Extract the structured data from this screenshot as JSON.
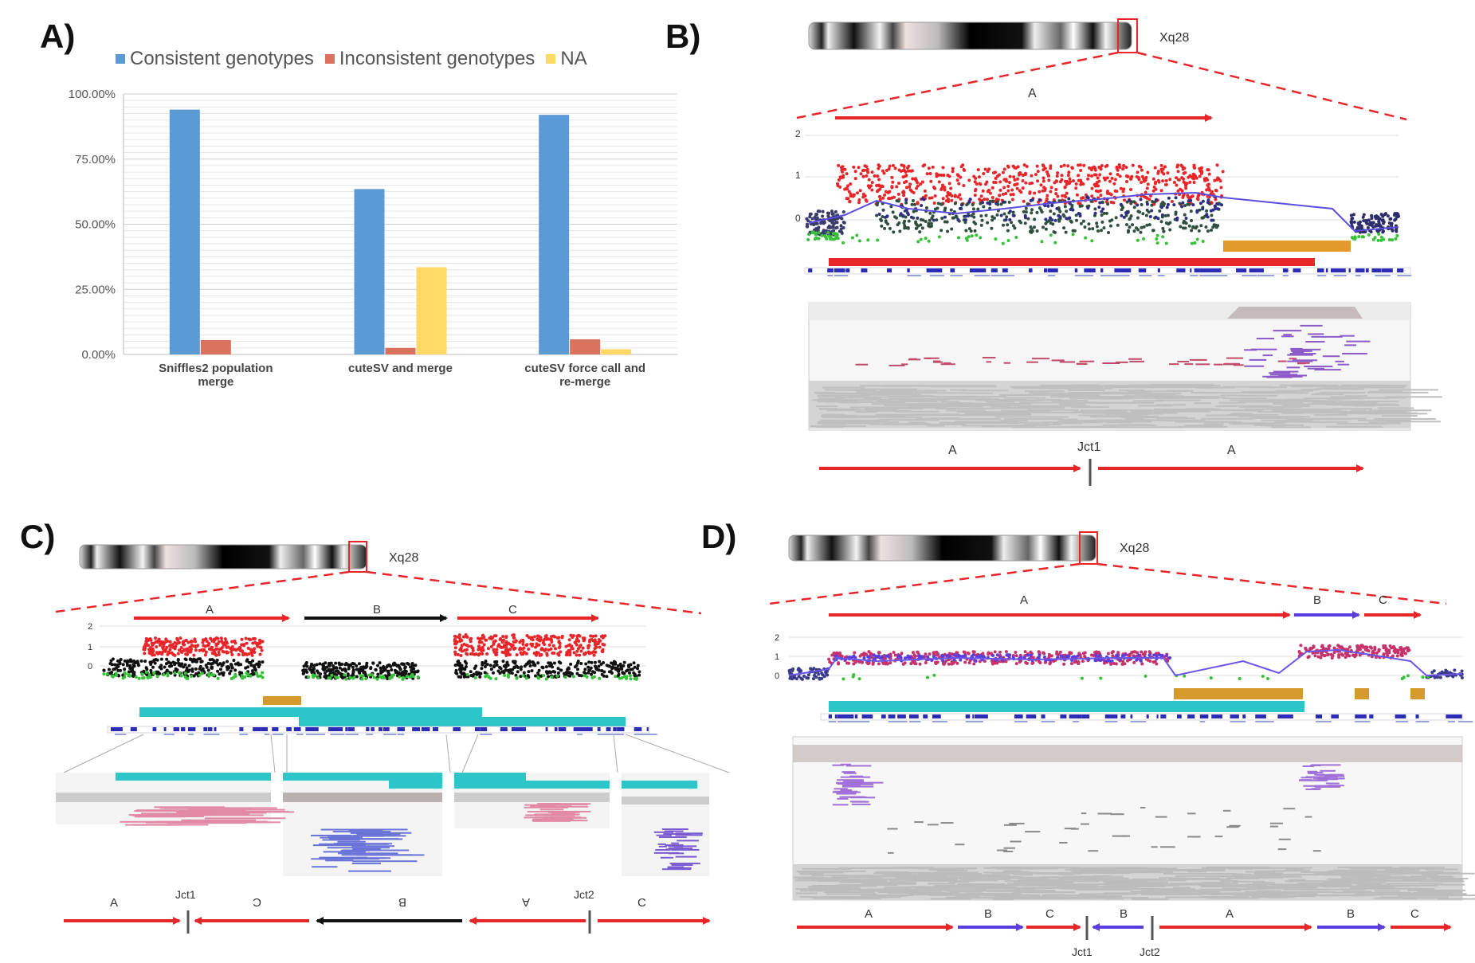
{
  "panels": {
    "a": "A)",
    "b": "B)",
    "c": "C)",
    "d": "D)"
  },
  "chart_data": {
    "type": "bar",
    "categories": [
      [
        "Sniffles2 population",
        "merge"
      ],
      [
        "cuteSV and merge"
      ],
      [
        "cuteSV force call and",
        "re-merge"
      ]
    ],
    "series": [
      {
        "name": "Consistent genotypes",
        "color": "#5b9bd5",
        "values": [
          0.94,
          0.635,
          0.92
        ]
      },
      {
        "name": "Inconsistent genotypes",
        "color": "#d9735e",
        "values": [
          0.055,
          0.025,
          0.058
        ]
      },
      {
        "name": "NA",
        "color": "#ffd966",
        "values": [
          0.0,
          0.335,
          0.02
        ]
      }
    ],
    "yticks": [
      "0.00%",
      "25.00%",
      "50.00%",
      "75.00%",
      "100.00%"
    ],
    "ylim": [
      0,
      1
    ],
    "legend": "top"
  },
  "panelB": {
    "band": "Xq28",
    "top_segment": "A",
    "bottom_left": "A",
    "bottom_right": "A",
    "junction": "Jct1",
    "yticks": [
      "2",
      "1",
      "0"
    ]
  },
  "panelC": {
    "band": "Xq28",
    "top": [
      "A",
      "B",
      "C"
    ],
    "bottom": [
      "A",
      "C",
      "B",
      "A",
      "C"
    ],
    "junctions": [
      "Jct1",
      "Jct2"
    ],
    "yticks": [
      "2",
      "1",
      "0"
    ]
  },
  "panelD": {
    "band": "Xq28",
    "top": [
      "A",
      "B",
      "C"
    ],
    "bottom": [
      "A",
      "B",
      "C",
      "B",
      "A",
      "B",
      "C"
    ],
    "junctions": [
      "Jct1",
      "Jct2"
    ],
    "yticks": [
      "2",
      "1",
      "0"
    ]
  }
}
